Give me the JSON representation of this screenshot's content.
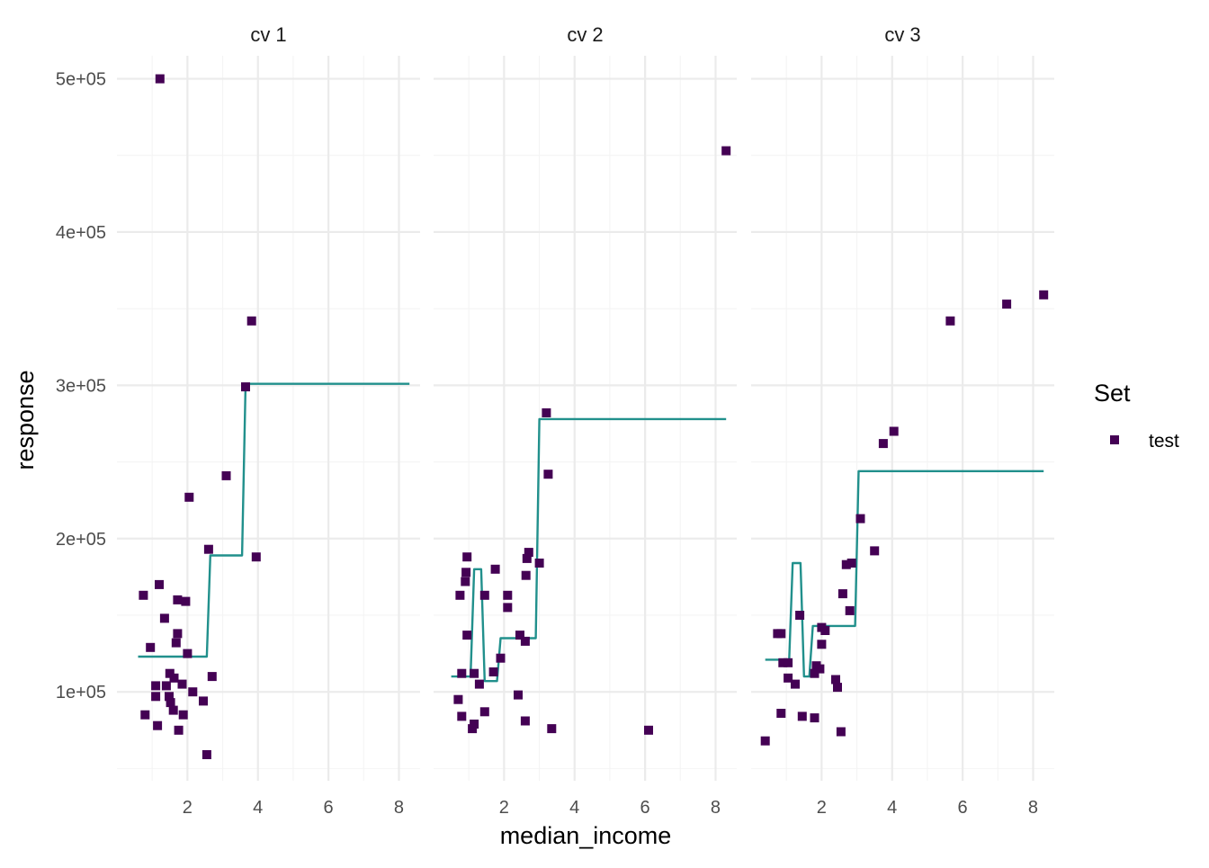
{
  "chart_data": {
    "type": "scatter",
    "xlabel": "median_income",
    "ylabel": "response",
    "xlim": [
      0,
      8.6
    ],
    "ylim": [
      42000,
      515000
    ],
    "x_ticks": [
      2,
      4,
      6,
      8
    ],
    "x_tick_labels": [
      "2",
      "4",
      "6",
      "8"
    ],
    "y_ticks": [
      100000,
      200000,
      300000,
      400000,
      500000
    ],
    "y_tick_labels": [
      "1e+05",
      "2e+05",
      "3e+05",
      "4e+05",
      "5e+05"
    ],
    "legend": {
      "title": "Set",
      "entries": [
        "test"
      ],
      "position": "right"
    },
    "colors": {
      "point": "#440154",
      "line": "#21908C",
      "grid_major": "#ebebeb",
      "grid_minor": "#f4f4f4"
    },
    "panels": [
      {
        "label": "cv 1",
        "points": [
          [
            1.22,
            500000
          ],
          [
            3.82,
            342000
          ],
          [
            3.65,
            299000
          ],
          [
            3.1,
            241000
          ],
          [
            2.05,
            227000
          ],
          [
            2.6,
            193000
          ],
          [
            3.95,
            188000
          ],
          [
            0.75,
            163000
          ],
          [
            1.2,
            170000
          ],
          [
            1.72,
            160000
          ],
          [
            1.95,
            159000
          ],
          [
            1.35,
            148000
          ],
          [
            1.72,
            138000
          ],
          [
            0.95,
            129000
          ],
          [
            1.68,
            132000
          ],
          [
            2.0,
            125000
          ],
          [
            1.5,
            112000
          ],
          [
            1.62,
            109000
          ],
          [
            2.7,
            110000
          ],
          [
            1.1,
            104000
          ],
          [
            1.4,
            104000
          ],
          [
            1.85,
            105000
          ],
          [
            1.1,
            97000
          ],
          [
            1.48,
            97000
          ],
          [
            1.52,
            93000
          ],
          [
            2.15,
            100000
          ],
          [
            2.45,
            94000
          ],
          [
            0.8,
            85000
          ],
          [
            1.6,
            88000
          ],
          [
            1.88,
            85000
          ],
          [
            1.15,
            78000
          ],
          [
            1.75,
            75000
          ],
          [
            2.55,
            59000
          ]
        ],
        "line": [
          [
            0.6,
            123000
          ],
          [
            2.55,
            123000
          ],
          [
            2.65,
            189000
          ],
          [
            3.55,
            189000
          ],
          [
            3.65,
            301000
          ],
          [
            8.3,
            301000
          ]
        ]
      },
      {
        "label": "cv 2",
        "points": [
          [
            8.3,
            453000
          ],
          [
            3.2,
            282000
          ],
          [
            3.25,
            242000
          ],
          [
            0.95,
            188000
          ],
          [
            2.7,
            191000
          ],
          [
            2.65,
            187000
          ],
          [
            3.0,
            184000
          ],
          [
            0.92,
            178000
          ],
          [
            0.9,
            172000
          ],
          [
            1.75,
            180000
          ],
          [
            2.62,
            176000
          ],
          [
            0.75,
            163000
          ],
          [
            1.45,
            163000
          ],
          [
            2.1,
            163000
          ],
          [
            2.1,
            155000
          ],
          [
            0.95,
            137000
          ],
          [
            2.45,
            137000
          ],
          [
            2.6,
            133000
          ],
          [
            1.9,
            122000
          ],
          [
            0.8,
            112000
          ],
          [
            1.15,
            112000
          ],
          [
            1.7,
            113000
          ],
          [
            1.3,
            105000
          ],
          [
            2.4,
            98000
          ],
          [
            0.7,
            95000
          ],
          [
            1.45,
            87000
          ],
          [
            0.8,
            84000
          ],
          [
            2.6,
            81000
          ],
          [
            1.15,
            79000
          ],
          [
            1.1,
            76000
          ],
          [
            3.35,
            76000
          ],
          [
            6.1,
            75000
          ]
        ],
        "line": [
          [
            0.5,
            110000
          ],
          [
            1.05,
            110000
          ],
          [
            1.15,
            180000
          ],
          [
            1.35,
            180000
          ],
          [
            1.45,
            107000
          ],
          [
            1.8,
            107000
          ],
          [
            1.9,
            135000
          ],
          [
            2.9,
            135000
          ],
          [
            3.0,
            278000
          ],
          [
            8.3,
            278000
          ]
        ]
      },
      {
        "label": "cv 3",
        "points": [
          [
            8.3,
            359000
          ],
          [
            7.25,
            353000
          ],
          [
            5.65,
            342000
          ],
          [
            4.05,
            270000
          ],
          [
            3.75,
            262000
          ],
          [
            3.1,
            213000
          ],
          [
            3.5,
            192000
          ],
          [
            2.85,
            184000
          ],
          [
            2.7,
            183000
          ],
          [
            2.6,
            164000
          ],
          [
            2.8,
            153000
          ],
          [
            1.38,
            150000
          ],
          [
            2.0,
            142000
          ],
          [
            2.1,
            140000
          ],
          [
            0.75,
            138000
          ],
          [
            0.85,
            138000
          ],
          [
            2.0,
            131000
          ],
          [
            0.9,
            119000
          ],
          [
            1.05,
            119000
          ],
          [
            1.85,
            117000
          ],
          [
            1.95,
            115000
          ],
          [
            1.8,
            112000
          ],
          [
            1.05,
            109000
          ],
          [
            2.4,
            108000
          ],
          [
            1.25,
            105000
          ],
          [
            2.45,
            103000
          ],
          [
            0.85,
            86000
          ],
          [
            1.45,
            84000
          ],
          [
            1.8,
            83000
          ],
          [
            2.55,
            74000
          ],
          [
            0.4,
            68000
          ]
        ],
        "line": [
          [
            0.4,
            121000
          ],
          [
            1.08,
            121000
          ],
          [
            1.18,
            184000
          ],
          [
            1.4,
            184000
          ],
          [
            1.5,
            110000
          ],
          [
            1.65,
            110000
          ],
          [
            1.75,
            143000
          ],
          [
            2.95,
            143000
          ],
          [
            3.05,
            244000
          ],
          [
            8.3,
            244000
          ]
        ]
      }
    ]
  }
}
